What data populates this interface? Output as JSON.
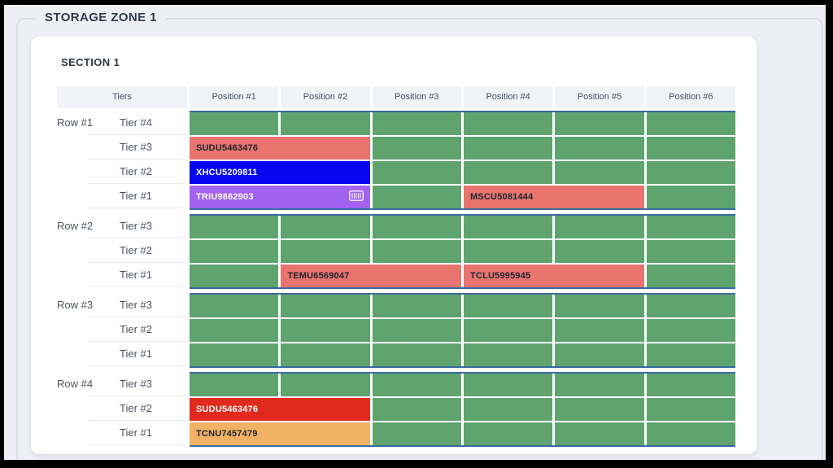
{
  "window": {
    "title": "STORAGE ZONE 1"
  },
  "section": {
    "title": "SECTION 1"
  },
  "table": {
    "tiers_header": "Tiers",
    "positions": [
      "Position #1",
      "Position #2",
      "Position #3",
      "Position #4",
      "Position #5",
      "Position #6"
    ],
    "colors": {
      "slot_green": "#5fa36e",
      "group_border_blue": "#3a6b9e",
      "container_salmon": "#e8736f",
      "container_red": "#e02a1e",
      "container_orange": "#f2b266",
      "container_blue": "#0406ee",
      "container_purple": "#a263f0"
    },
    "rows": [
      {
        "label": "Row #1",
        "tiers": [
          {
            "label": "Tier #4",
            "cells": [
              {
                "type": "slot"
              },
              {
                "type": "slot"
              },
              {
                "type": "slot"
              },
              {
                "type": "slot"
              },
              {
                "type": "slot"
              },
              {
                "type": "slot"
              }
            ]
          },
          {
            "label": "Tier #3",
            "cells": [
              {
                "type": "container",
                "id": "SUDU5463476",
                "span": 2,
                "color": "container_salmon",
                "text": "dark"
              },
              {
                "type": "slot"
              },
              {
                "type": "slot"
              },
              {
                "type": "slot"
              },
              {
                "type": "slot"
              }
            ]
          },
          {
            "label": "Tier #2",
            "cells": [
              {
                "type": "container",
                "id": "XHCU5209811",
                "span": 2,
                "color": "container_blue",
                "text": "light"
              },
              {
                "type": "slot"
              },
              {
                "type": "slot"
              },
              {
                "type": "slot"
              },
              {
                "type": "slot"
              }
            ]
          },
          {
            "label": "Tier #1",
            "cells": [
              {
                "type": "container",
                "id": "TRIU9862903",
                "span": 2,
                "color": "container_purple",
                "text": "light",
                "icon": "container-icon"
              },
              {
                "type": "slot"
              },
              {
                "type": "container",
                "id": "MSCU5081444",
                "span": 2,
                "color": "container_salmon",
                "text": "dark"
              },
              {
                "type": "slot"
              }
            ]
          }
        ]
      },
      {
        "label": "Row #2",
        "tiers": [
          {
            "label": "Tier #3",
            "cells": [
              {
                "type": "slot"
              },
              {
                "type": "slot"
              },
              {
                "type": "slot"
              },
              {
                "type": "slot"
              },
              {
                "type": "slot"
              },
              {
                "type": "slot"
              }
            ]
          },
          {
            "label": "Tier #2",
            "cells": [
              {
                "type": "slot"
              },
              {
                "type": "slot"
              },
              {
                "type": "slot"
              },
              {
                "type": "slot"
              },
              {
                "type": "slot"
              },
              {
                "type": "slot"
              }
            ]
          },
          {
            "label": "Tier #1",
            "cells": [
              {
                "type": "slot"
              },
              {
                "type": "container",
                "id": "TEMU6569047",
                "span": 2,
                "color": "container_salmon",
                "text": "dark"
              },
              {
                "type": "container",
                "id": "TCLU5995945",
                "span": 2,
                "color": "container_salmon",
                "text": "dark"
              },
              {
                "type": "slot"
              }
            ]
          }
        ]
      },
      {
        "label": "Row #3",
        "tiers": [
          {
            "label": "Tier #3",
            "cells": [
              {
                "type": "slot"
              },
              {
                "type": "slot"
              },
              {
                "type": "slot"
              },
              {
                "type": "slot"
              },
              {
                "type": "slot"
              },
              {
                "type": "slot"
              }
            ]
          },
          {
            "label": "Tier #2",
            "cells": [
              {
                "type": "slot"
              },
              {
                "type": "slot"
              },
              {
                "type": "slot"
              },
              {
                "type": "slot"
              },
              {
                "type": "slot"
              },
              {
                "type": "slot"
              }
            ]
          },
          {
            "label": "Tier #1",
            "cells": [
              {
                "type": "slot"
              },
              {
                "type": "slot"
              },
              {
                "type": "slot"
              },
              {
                "type": "slot"
              },
              {
                "type": "slot"
              },
              {
                "type": "slot"
              }
            ]
          }
        ]
      },
      {
        "label": "Row #4",
        "tiers": [
          {
            "label": "Tier #3",
            "cells": [
              {
                "type": "slot"
              },
              {
                "type": "slot"
              },
              {
                "type": "slot"
              },
              {
                "type": "slot"
              },
              {
                "type": "slot"
              },
              {
                "type": "slot"
              }
            ]
          },
          {
            "label": "Tier #2",
            "cells": [
              {
                "type": "container",
                "id": "SUDU5463476",
                "span": 2,
                "color": "container_red",
                "text": "light"
              },
              {
                "type": "slot"
              },
              {
                "type": "slot"
              },
              {
                "type": "slot"
              },
              {
                "type": "slot"
              }
            ]
          },
          {
            "label": "Tier #1",
            "cells": [
              {
                "type": "container",
                "id": "TCNU7457479",
                "span": 2,
                "color": "container_orange",
                "text": "dark"
              },
              {
                "type": "slot"
              },
              {
                "type": "slot"
              },
              {
                "type": "slot"
              },
              {
                "type": "slot"
              }
            ]
          }
        ]
      }
    ]
  }
}
